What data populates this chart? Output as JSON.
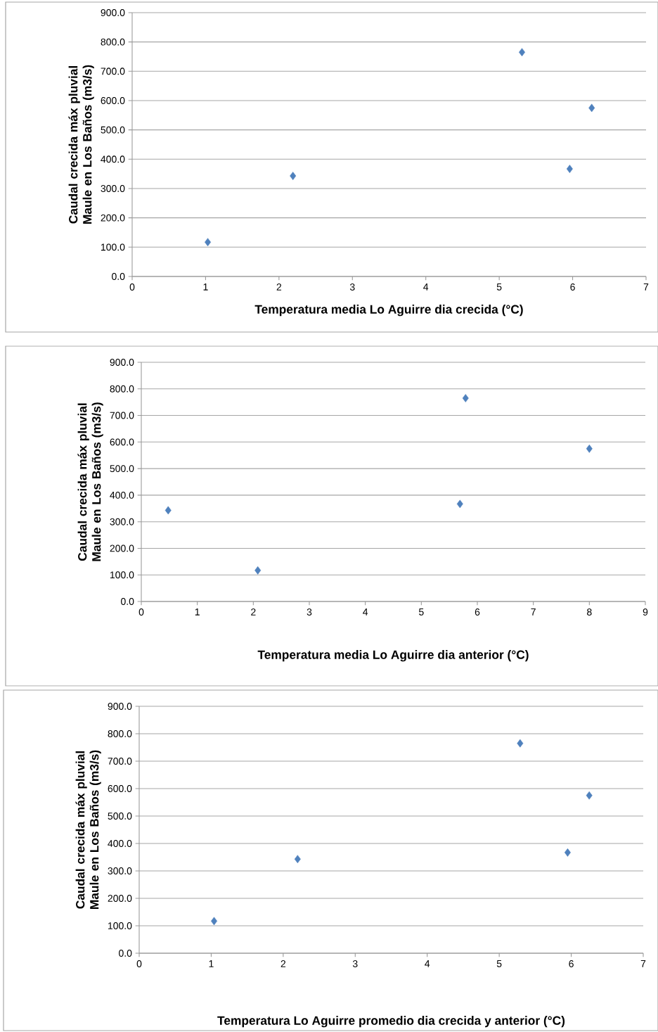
{
  "chart_data": [
    {
      "type": "scatter",
      "xlabel": "Temperatura media Lo Aguirre dia crecida (°C)",
      "ylabel": "Caudal crecida máx pluvial Maule en Los Baños (m3/s)",
      "x": [
        1.03,
        2.19,
        5.31,
        6.26,
        5.96
      ],
      "series": [
        {
          "color": "#4f81bd",
          "values": [
            117,
            343,
            765,
            575,
            367
          ]
        }
      ],
      "xlim": [
        0,
        7
      ],
      "xticks": [
        0,
        1,
        2,
        3,
        4,
        5,
        6,
        7
      ],
      "ylim": [
        0,
        900
      ],
      "yticks": [
        {
          "value": 0,
          "label": "0.0"
        },
        {
          "value": 100,
          "label": "100.0"
        },
        {
          "value": 200,
          "label": "200.0"
        },
        {
          "value": 300,
          "label": "300.0"
        },
        {
          "value": 400,
          "label": "400.0"
        },
        {
          "value": 500,
          "label": "500.0"
        },
        {
          "value": 600,
          "label": "600.0"
        },
        {
          "value": 700,
          "label": "700.0"
        },
        {
          "value": 800,
          "label": "800.0"
        },
        {
          "value": 900,
          "label": "900.0"
        }
      ],
      "grid": "y",
      "marker": "diamond"
    },
    {
      "type": "scatter",
      "xlabel": "Temperatura media Lo Aguirre dia anterior (°C)",
      "ylabel": "Caudal crecida máx pluvial Maule en Los Baños (m3/s)",
      "x": [
        2.08,
        0.48,
        5.79,
        8.0,
        5.69
      ],
      "series": [
        {
          "color": "#4f81bd",
          "values": [
            117,
            343,
            765,
            575,
            367
          ]
        }
      ],
      "xlim": [
        0,
        9
      ],
      "xticks": [
        0,
        1,
        2,
        3,
        4,
        5,
        6,
        7,
        8,
        9
      ],
      "ylim": [
        0,
        900
      ],
      "yticks": [
        {
          "value": 0,
          "label": "0.0"
        },
        {
          "value": 100,
          "label": "100.0"
        },
        {
          "value": 200,
          "label": "200.0"
        },
        {
          "value": 300,
          "label": "300.0"
        },
        {
          "value": 400,
          "label": "400.0"
        },
        {
          "value": 500,
          "label": "500.0"
        },
        {
          "value": 600,
          "label": "600.0"
        },
        {
          "value": 700,
          "label": "700.0"
        },
        {
          "value": 800,
          "label": "800.0"
        },
        {
          "value": 900,
          "label": "900.0"
        }
      ],
      "grid": "y",
      "marker": "diamond"
    },
    {
      "type": "scatter",
      "xlabel": "Temperatura  Lo Aguirre promedio dia crecida y anterior (°C)",
      "ylabel": "Caudal crecida máx pluvial Maule en Los Baños (m3/s)",
      "x": [
        1.04,
        2.2,
        5.29,
        6.25,
        5.95
      ],
      "series": [
        {
          "color": "#4f81bd",
          "values": [
            117,
            343,
            765,
            575,
            367
          ]
        }
      ],
      "xlim": [
        0,
        7
      ],
      "xticks": [
        0,
        1,
        2,
        3,
        4,
        5,
        6,
        7
      ],
      "ylim": [
        0,
        900
      ],
      "yticks": [
        {
          "value": 0,
          "label": "0.0"
        },
        {
          "value": 100,
          "label": "100.0"
        },
        {
          "value": 200,
          "label": "200.0"
        },
        {
          "value": 300,
          "label": "300.0"
        },
        {
          "value": 400,
          "label": "400.0"
        },
        {
          "value": 500,
          "label": "500.0"
        },
        {
          "value": 600,
          "label": "600.0"
        },
        {
          "value": 700,
          "label": "700.0"
        },
        {
          "value": 800,
          "label": "800.0"
        },
        {
          "value": 900,
          "label": "900.0"
        }
      ],
      "grid": "y",
      "marker": "diamond"
    }
  ]
}
